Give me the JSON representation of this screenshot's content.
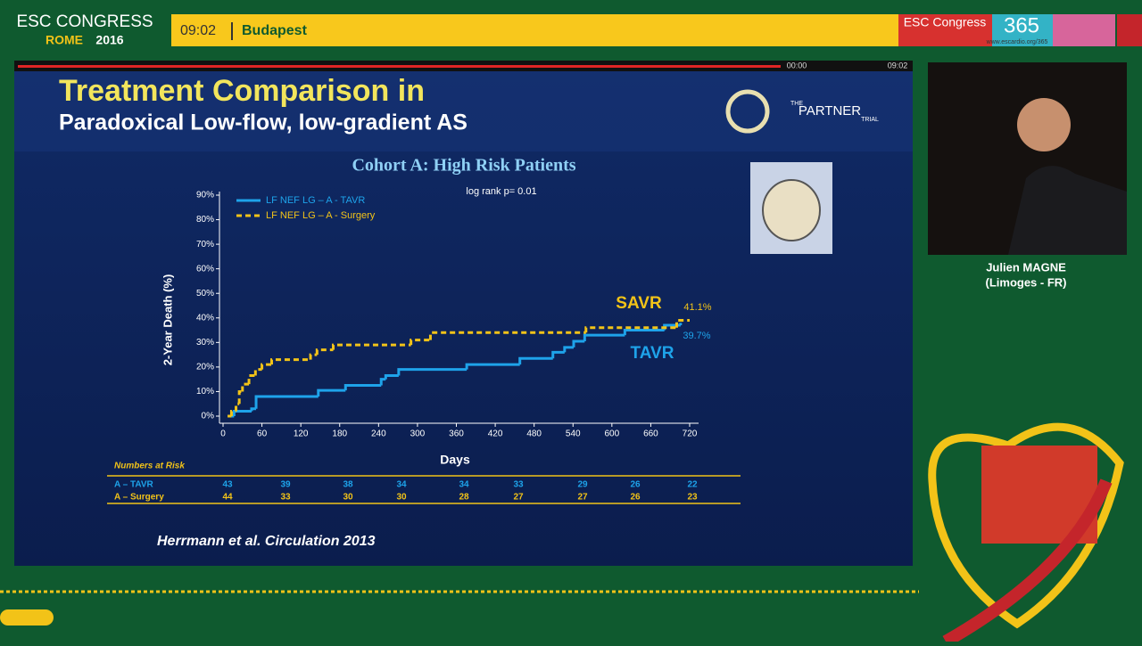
{
  "header": {
    "brand": "ESC CONGRESS",
    "city": "ROME",
    "year": "2016",
    "clock": "09:02",
    "room": "Budapest",
    "badge": "ESC Congress",
    "badge_number": "365",
    "url": "www.escardio.org/365"
  },
  "player": {
    "elapsed": "00:00",
    "duration": "09:02"
  },
  "slide": {
    "title": "Treatment Comparison in",
    "subtitle": "Paradoxical Low-flow, low-gradient AS",
    "logo_top": "THE",
    "logo_main": "PARTNER",
    "logo_bottom": "TRIAL",
    "citation": "Herrmann et al. Circulation 2013"
  },
  "speaker": {
    "name": "Julien MAGNE",
    "affiliation": "(Limoges - FR)"
  },
  "chart_data": {
    "type": "step",
    "title": "Cohort A: High Risk Patients",
    "subtitle": "log rank p= 0.01",
    "x_label": "Days",
    "y_label": "2-Year Death (%)",
    "xlim": [
      0,
      720
    ],
    "xticks": [
      0,
      60,
      120,
      180,
      240,
      300,
      360,
      420,
      480,
      540,
      600,
      660,
      720
    ],
    "ylim": [
      0,
      90
    ],
    "yticks": [
      {
        "value": 0,
        "label": "0%"
      },
      {
        "value": 10,
        "label": "10%"
      },
      {
        "value": 20,
        "label": "20%"
      },
      {
        "value": 30,
        "label": "30%"
      },
      {
        "value": 40,
        "label": "40%"
      },
      {
        "value": 50,
        "label": "50%"
      },
      {
        "value": 60,
        "label": "60%"
      },
      {
        "value": 70,
        "label": "70%"
      },
      {
        "value": 80,
        "label": "80%"
      },
      {
        "value": 90,
        "label": "90%"
      }
    ],
    "series": [
      {
        "name": "LF NEF LG – A - TAVR",
        "color": "#1ea3ea",
        "dashed": false,
        "x": [
          7,
          17,
          44,
          51,
          147,
          189,
          244,
          251,
          271,
          376,
          458,
          509,
          527,
          541,
          558,
          620,
          681,
          706
        ],
        "values": [
          0,
          2,
          3,
          8,
          10.5,
          12.5,
          15,
          16.5,
          19,
          21,
          23.5,
          26,
          28,
          30.5,
          33,
          35,
          37,
          38
        ]
      },
      {
        "name": "LF NEF LG – A - Surgery",
        "color": "#f2c318",
        "dashed": true,
        "x": [
          7,
          13,
          20,
          25,
          30,
          40,
          50,
          60,
          75,
          135,
          145,
          170,
          290,
          320,
          560,
          700,
          720
        ],
        "values": [
          0,
          2,
          5,
          10,
          13,
          16.5,
          19,
          21,
          23,
          25,
          27,
          29,
          31,
          34,
          36,
          39,
          39
        ]
      }
    ],
    "annotations": [
      {
        "text": "SAVR",
        "color": "#f2c318"
      },
      {
        "text": "41.1%",
        "color": "#f2c318"
      },
      {
        "text": "TAVR",
        "color": "#1ea3ea"
      },
      {
        "text": "39.7%",
        "color": "#1ea3ea"
      }
    ]
  },
  "risk_table": {
    "title": "Numbers at Risk",
    "rows": [
      {
        "label": "A – TAVR",
        "values": [
          43,
          39,
          38,
          34,
          34,
          33,
          29,
          26,
          22
        ]
      },
      {
        "label": "A – Surgery",
        "values": [
          44,
          33,
          30,
          30,
          28,
          27,
          27,
          26,
          23
        ]
      }
    ]
  }
}
